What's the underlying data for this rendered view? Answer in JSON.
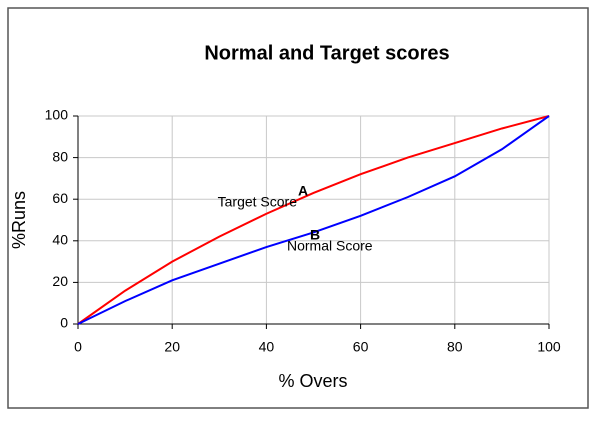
{
  "chart_data": {
    "type": "line",
    "title": "Normal and Target scores",
    "x_label": "% Overs",
    "y_label": "%Runs",
    "x": [
      0,
      10,
      20,
      30,
      40,
      50,
      60,
      70,
      80,
      90,
      100
    ],
    "series": [
      {
        "name": "Target Score",
        "marker_label": "A",
        "color": "#ff0000",
        "values": [
          0,
          16,
          30,
          42,
          53,
          63,
          72,
          80,
          87,
          94,
          100
        ]
      },
      {
        "name": "Normal Score",
        "marker_label": "B",
        "color": "#0000ff",
        "values": [
          0,
          11,
          21,
          29,
          37,
          44,
          52,
          61,
          71,
          84,
          100
        ]
      }
    ],
    "xlim": [
      0,
      100
    ],
    "xticks": [
      0,
      20,
      40,
      60,
      80,
      100
    ],
    "ylim": [
      0,
      100
    ],
    "yticks": [
      0,
      20,
      40,
      60,
      80,
      100
    ],
    "grid": true
  }
}
